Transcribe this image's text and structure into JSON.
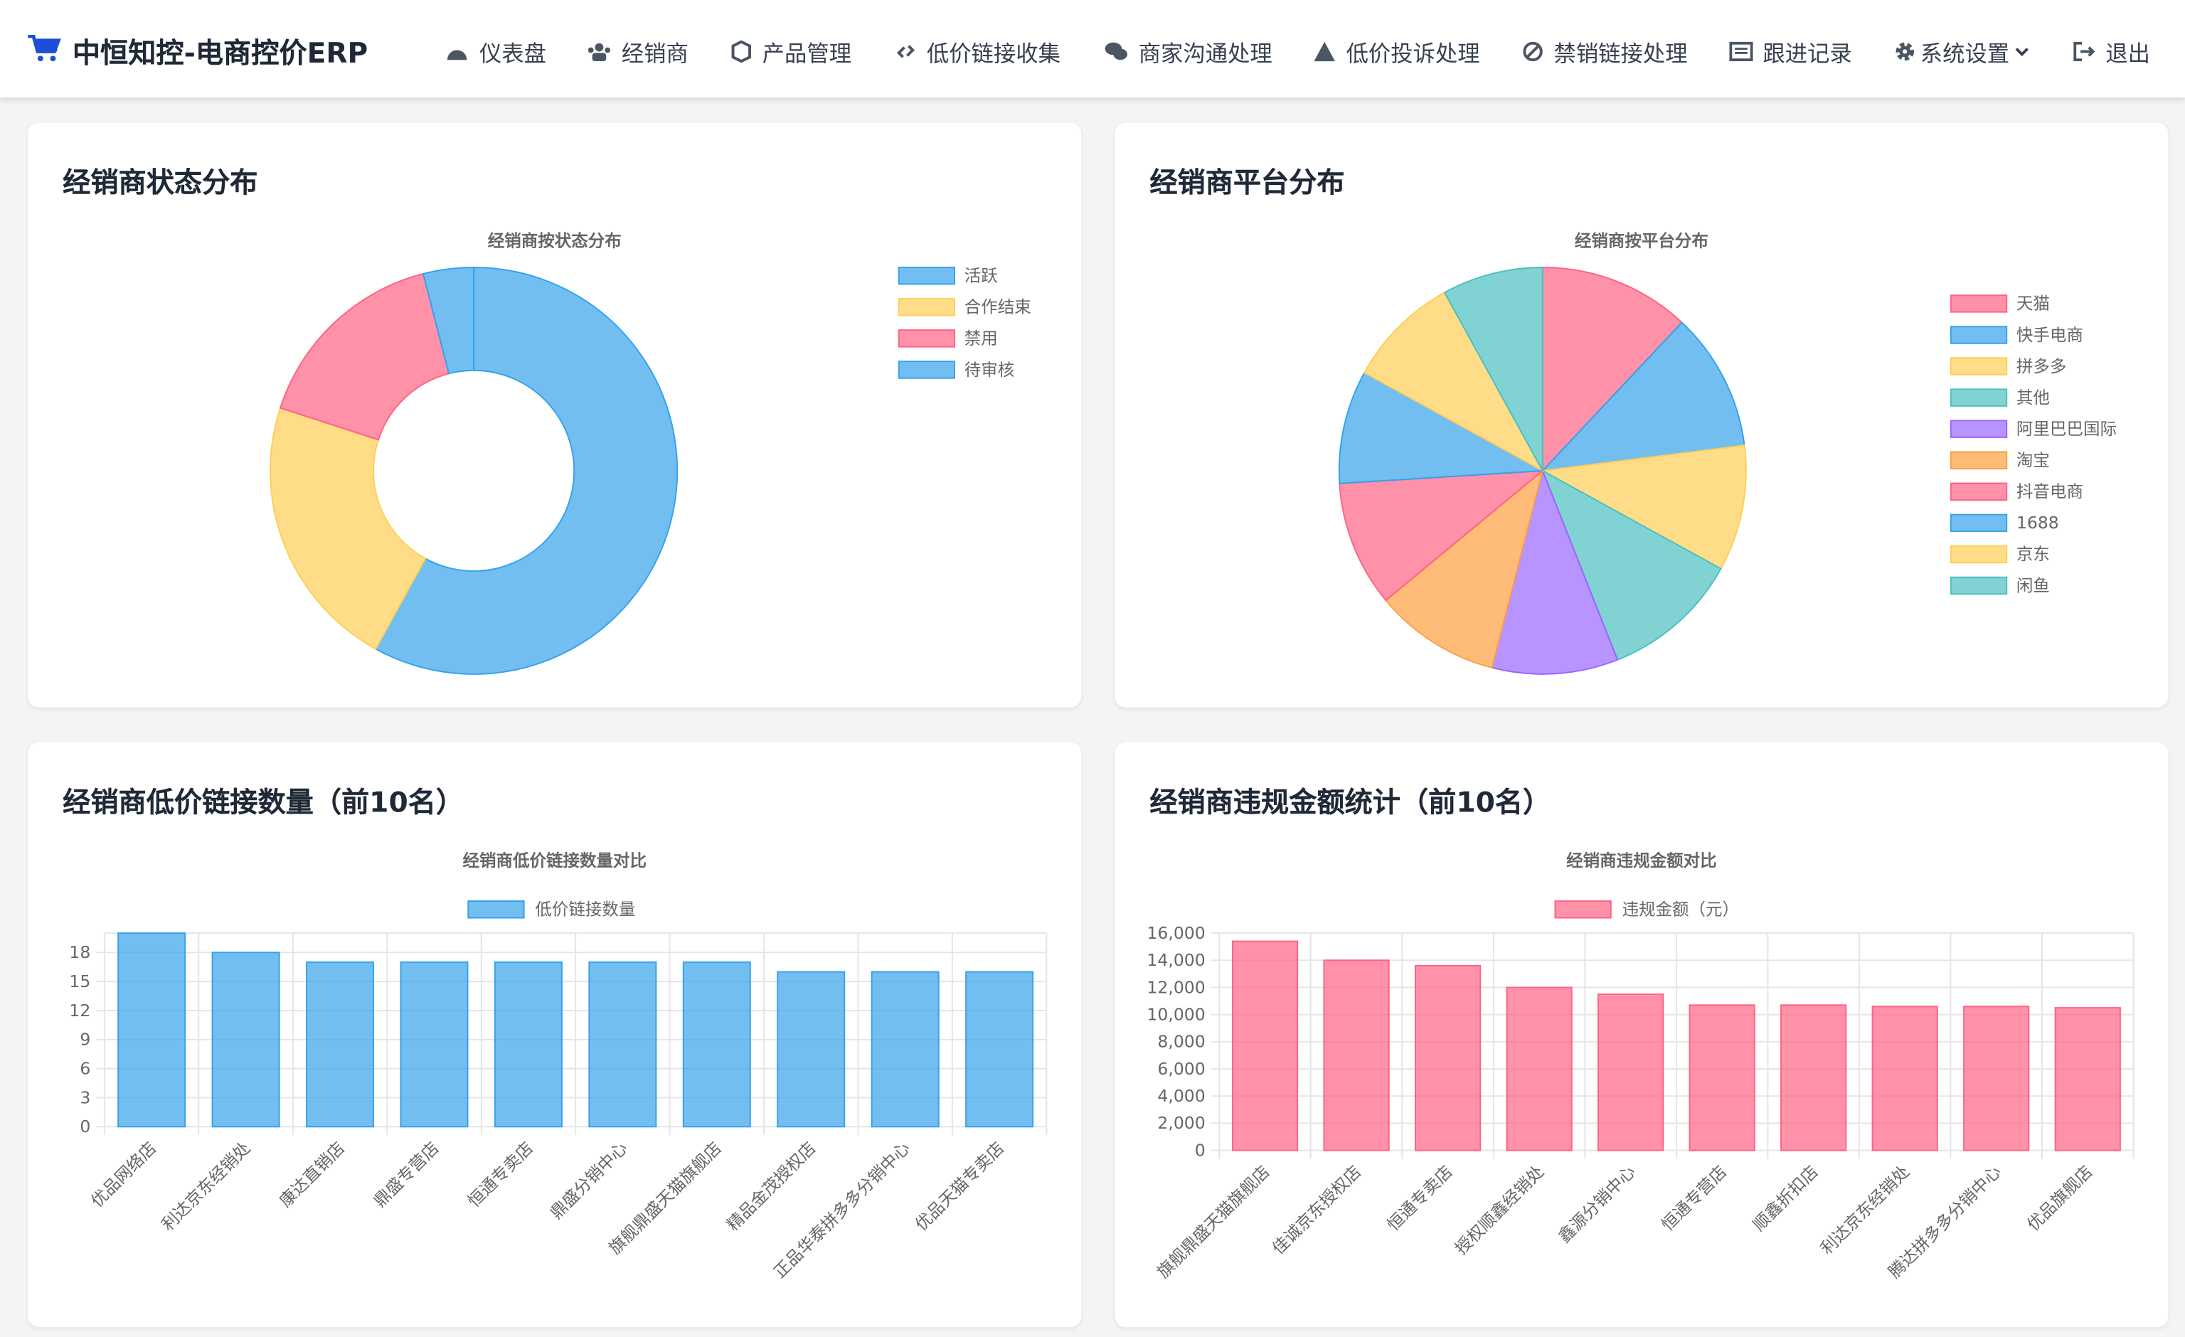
{
  "header": {
    "brand": "中恒知控-电商控价ERP",
    "nav": [
      "仪表盘",
      "经销商",
      "产品管理",
      "低价链接收集",
      "商家沟通处理",
      "低价投诉处理",
      "禁销链接处理",
      "跟进记录",
      "系统设置",
      "退出"
    ]
  },
  "chart_data": [
    {
      "type": "doughnut",
      "heading": "经销商状态分布",
      "title": "经销商按状态分布",
      "categories": [
        "活跃",
        "合作结束",
        "禁用",
        "待审核"
      ],
      "values": [
        29,
        11,
        8,
        2
      ],
      "colors": [
        "#36a2eb",
        "#ffce56",
        "#ff6384",
        "#36a2eb"
      ]
    },
    {
      "type": "pie",
      "heading": "经销商平台分布",
      "title": "经销商按平台分布",
      "categories": [
        "天猫",
        "快手电商",
        "拼多多",
        "其他",
        "阿里巴巴国际",
        "淘宝",
        "抖音电商",
        "1688",
        "京东",
        "闲鱼"
      ],
      "values": [
        12,
        11,
        10,
        11,
        10,
        10,
        10,
        9,
        9,
        8
      ],
      "colors": [
        "#ff6384",
        "#36a2eb",
        "#ffce56",
        "#4bc0c0",
        "#9966ff",
        "#ff9f40",
        "#ff6384",
        "#36a2eb",
        "#ffce56",
        "#4bc0c0"
      ]
    },
    {
      "type": "bar",
      "heading": "经销商低价链接数量（前10名）",
      "title": "经销商低价链接数量对比",
      "categories": [
        "优品网络店",
        "利达京东经销处",
        "康达直销店",
        "鼎盛专营店",
        "恒通专卖店",
        "鼎盛分销中心",
        "旗舰鼎盛天猫旗舰店",
        "精品金茂授权店",
        "正品华泰拼多多分销中心",
        "优品天猫专卖店"
      ],
      "series": [
        {
          "name": "低价链接数量",
          "color": "#36a2eb",
          "values": [
            20,
            18,
            17,
            17,
            17,
            17,
            17,
            16,
            16,
            16
          ]
        }
      ],
      "ylim": [
        0,
        20
      ],
      "yticks": [
        0,
        3,
        6,
        9,
        12,
        15,
        18
      ],
      "grid": true
    },
    {
      "type": "bar",
      "heading": "经销商违规金额统计（前10名）",
      "title": "经销商违规金额对比",
      "categories": [
        "旗舰鼎盛天猫旗舰店",
        "佳诚京东授权店",
        "恒通专卖店",
        "授权顺鑫经销处",
        "鑫源分销中心",
        "恒通专营店",
        "顺鑫折扣店",
        "利达京东经销处",
        "腾达拼多多分销中心",
        "优品旗舰店"
      ],
      "series": [
        {
          "name": "违规金额（元）",
          "color": "#ff6384",
          "values": [
            15400,
            14000,
            13600,
            12000,
            11500,
            10700,
            10700,
            10600,
            10600,
            10500
          ]
        }
      ],
      "ylim": [
        0,
        16000
      ],
      "yticks": [
        0,
        {
          "value": 2000,
          "label": "2,000"
        },
        {
          "value": 4000,
          "label": "4,000"
        },
        {
          "value": 6000,
          "label": "6,000"
        },
        {
          "value": 8000,
          "label": "8,000"
        },
        {
          "value": 10000,
          "label": "10,000"
        },
        {
          "value": 12000,
          "label": "12,000"
        },
        {
          "value": 14000,
          "label": "14,000"
        },
        {
          "value": 16000,
          "label": "16,000"
        }
      ],
      "grid": true
    }
  ]
}
